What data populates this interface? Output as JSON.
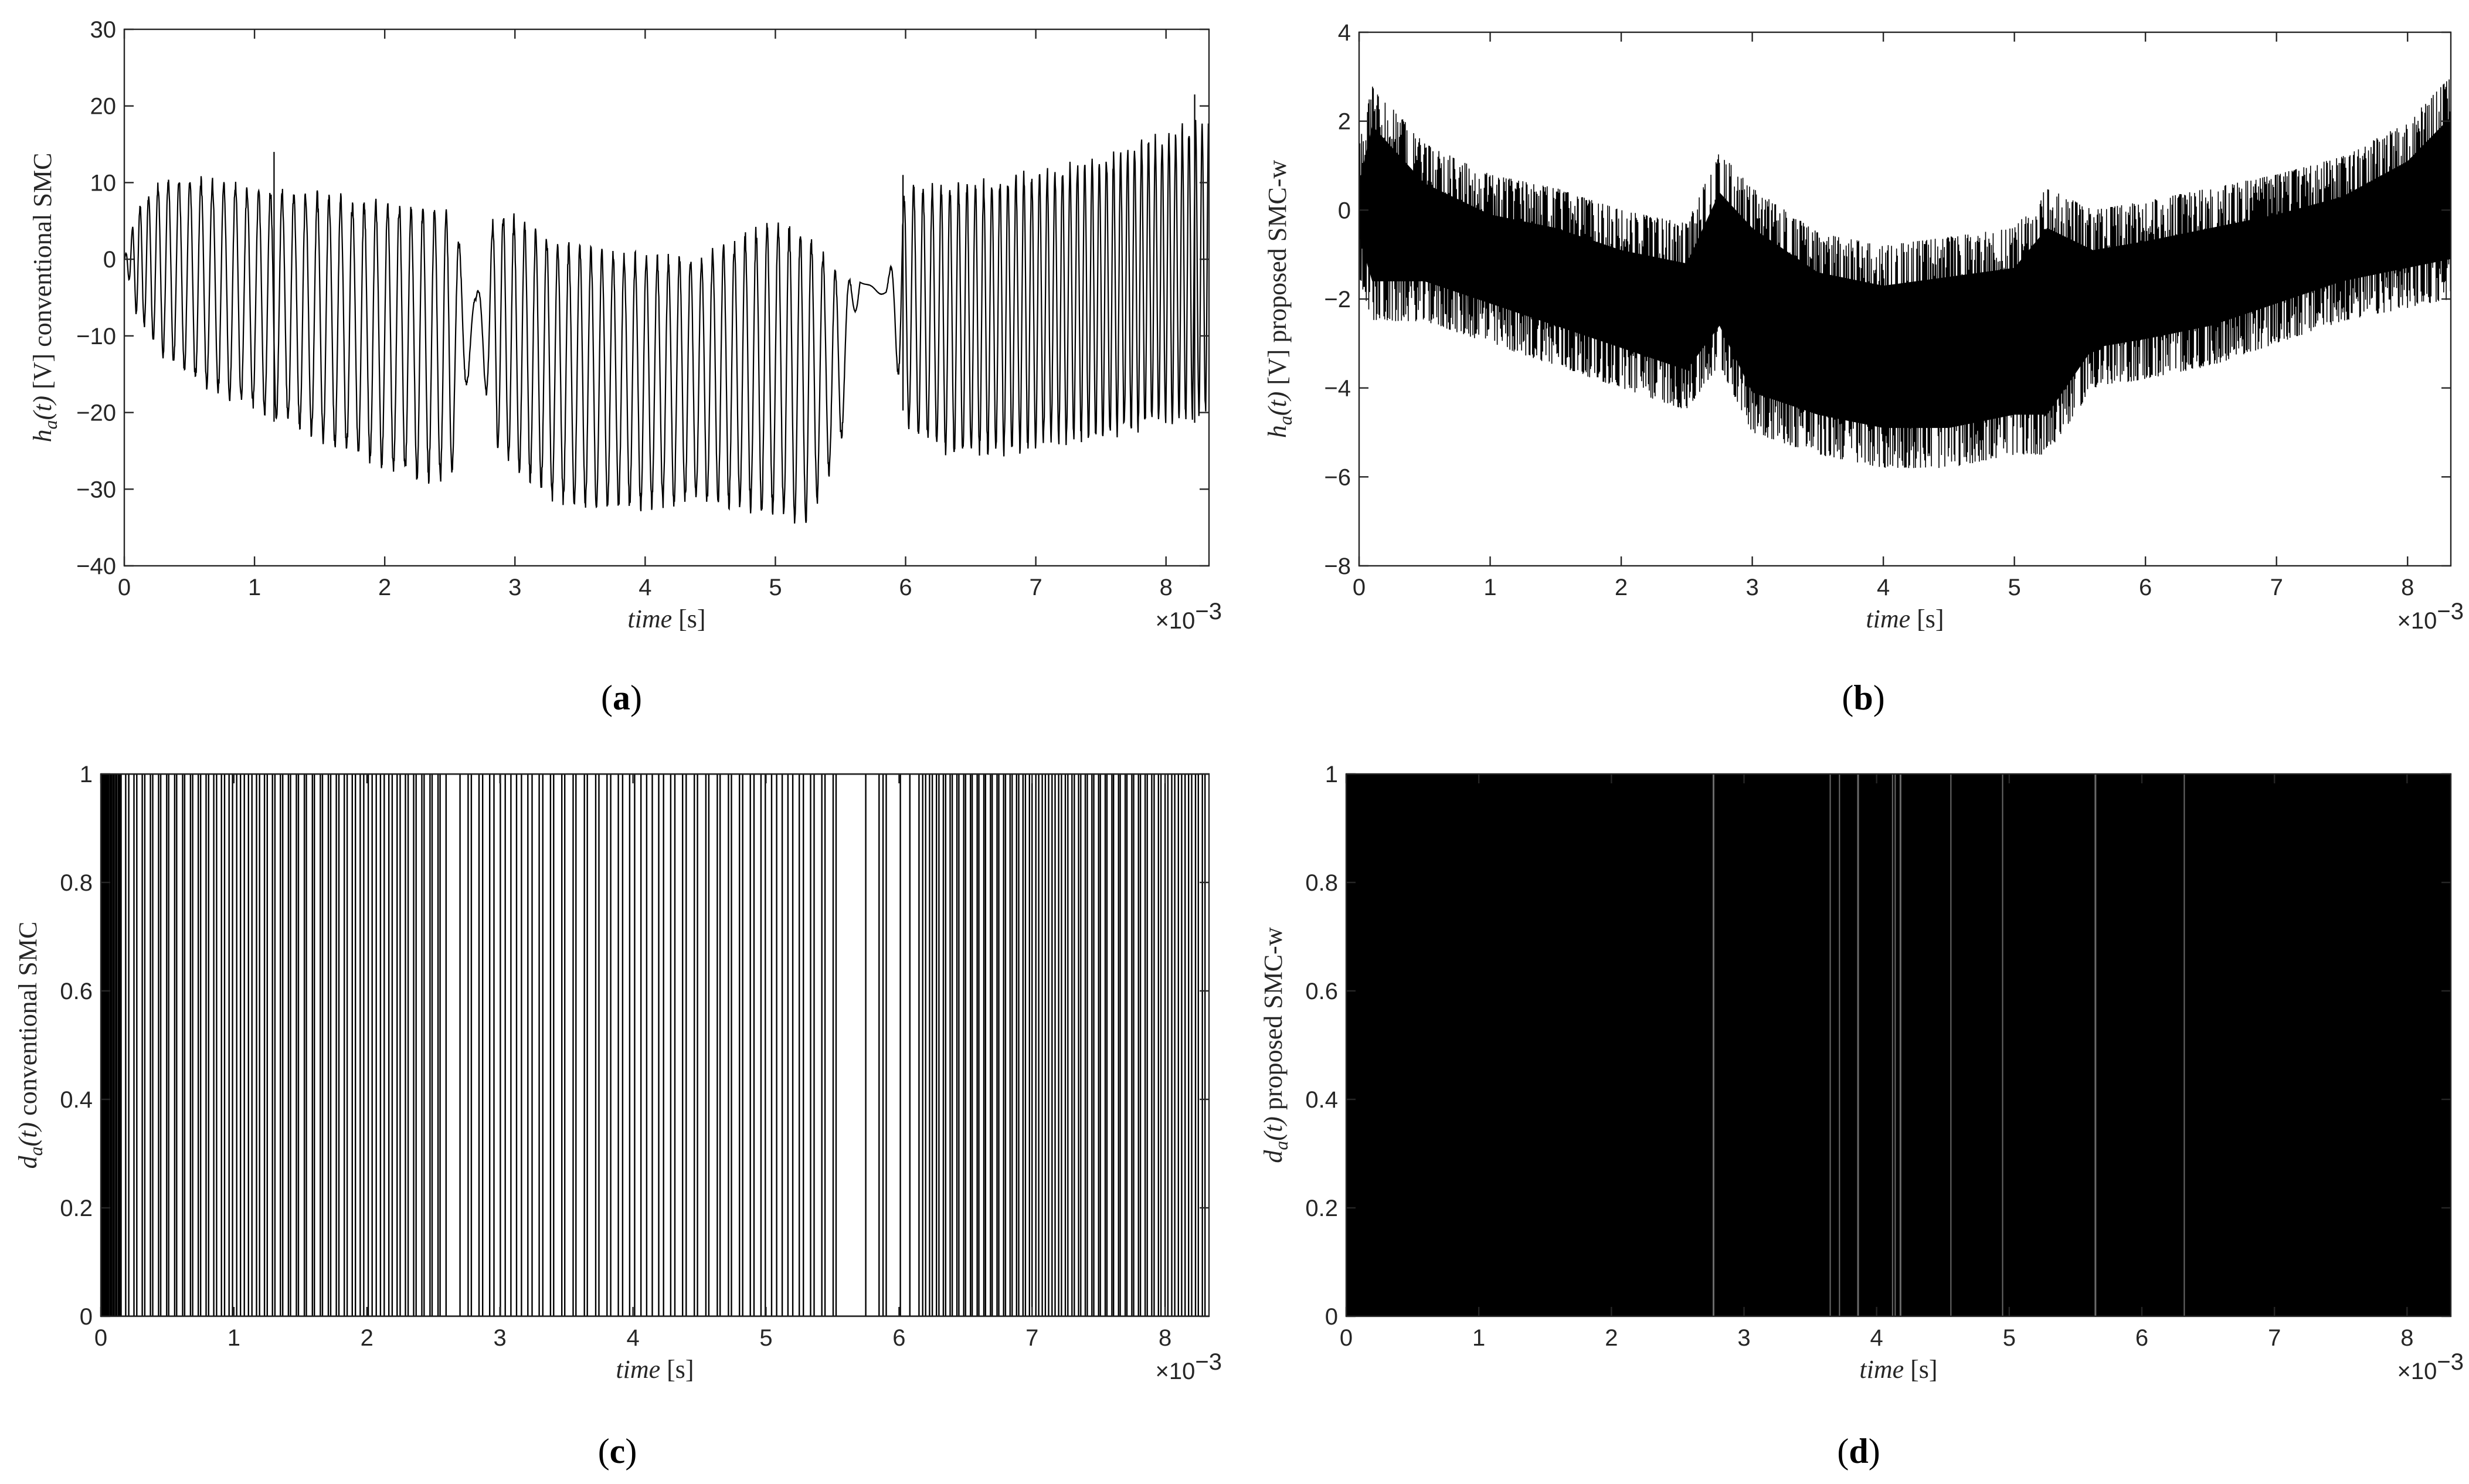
{
  "chart_data": [
    {
      "id": "a",
      "type": "line",
      "caption": "(a)",
      "ylabel": "h_a(t) [V] conventional SMC",
      "ylabel_math": "h",
      "ylabel_sub": "a",
      "ylabel_arg": "(t) ",
      "ylabel_unit": "[V]",
      "ylabel_text": " conventional SMC",
      "xlabel": "time [s]",
      "xlabel_word": "time",
      "xlabel_unit": "[s]",
      "x_exponent": "×10",
      "x_exponent_power": "−3",
      "xlim": [
        0,
        8.33
      ],
      "ylim": [
        -40,
        30
      ],
      "xticks": [
        0,
        1,
        2,
        3,
        4,
        5,
        6,
        7,
        8
      ],
      "yticks": [
        -40,
        -30,
        -20,
        -10,
        0,
        10,
        20,
        30
      ],
      "envelope": {
        "x": [
          0,
          0.1,
          0.3,
          0.6,
          1.0,
          1.5,
          2.0,
          2.5,
          2.7,
          2.85,
          3.0,
          3.3,
          3.6,
          4.0,
          4.4,
          4.7,
          5.0,
          5.25,
          5.5,
          5.65,
          5.85,
          6.0,
          6.3,
          6.7,
          7.0,
          7.5,
          8.0,
          8.33
        ],
        "upper": [
          0,
          7,
          11,
          11,
          10,
          9,
          8,
          7,
          -5,
          7,
          6,
          3,
          2,
          1,
          1,
          3,
          6,
          4,
          -2,
          -3,
          -4,
          10,
          10,
          11,
          12,
          14,
          17,
          19
        ],
        "lower": [
          0,
          -8,
          -13,
          -17,
          -20,
          -24,
          -28,
          -30,
          -10,
          -25,
          -28,
          -32,
          -33,
          -33,
          -32,
          -33,
          -34,
          -35,
          -25,
          -3,
          -5,
          -22,
          -26,
          -26,
          -25,
          -24,
          -22,
          -21
        ],
        "period": [
          0.048,
          0.06,
          0.08,
          0.087,
          0.09,
          0.09,
          0.09,
          0.09,
          0.16,
          0.08,
          0.083,
          0.085,
          0.085,
          0.085,
          0.085,
          0.083,
          0.085,
          0.085,
          0.1,
          0.16,
          0.16,
          0.075,
          0.067,
          0.062,
          0.06,
          0.055,
          0.052,
          0.05
        ]
      },
      "annotations": [
        {
          "x": 5.98,
          "y": 11,
          "label": "spike"
        },
        {
          "x": 1.15,
          "y": 14,
          "label": "spike"
        },
        {
          "x": 8.22,
          "y": 21.5,
          "label": "spike"
        }
      ]
    },
    {
      "id": "b",
      "type": "line",
      "caption": "(b)",
      "ylabel": "h_a(t) [V] proposed SMC-w",
      "ylabel_math": "h",
      "ylabel_sub": "a",
      "ylabel_arg": "(t) ",
      "ylabel_unit": "[V]",
      "ylabel_text": " proposed SMC-w",
      "xlabel": "time [s]",
      "xlabel_word": "time",
      "xlabel_unit": "[s]",
      "x_exponent": "×10",
      "x_exponent_power": "−3",
      "xlim": [
        0,
        8.33
      ],
      "ylim": [
        -8,
        4
      ],
      "xticks": [
        0,
        1,
        2,
        3,
        4,
        5,
        6,
        7,
        8
      ],
      "yticks": [
        -8,
        -6,
        -4,
        -2,
        0,
        2,
        4
      ],
      "envelope": {
        "x": [
          0,
          0.1,
          0.5,
          1.0,
          1.5,
          2.0,
          2.5,
          2.75,
          3.0,
          3.5,
          4.0,
          4.5,
          5.0,
          5.25,
          5.6,
          6.0,
          6.5,
          7.0,
          7.5,
          8.0,
          8.33
        ],
        "upper": [
          1.5,
          2.8,
          1.5,
          0.8,
          0.5,
          0.0,
          -0.3,
          1.3,
          0.5,
          -0.5,
          -0.8,
          -0.6,
          -0.4,
          0.5,
          0.0,
          0.2,
          0.5,
          0.8,
          1.2,
          2.0,
          3.0
        ],
        "lower": [
          -1.5,
          -2.5,
          -2.5,
          -3.0,
          -3.5,
          -4.0,
          -4.5,
          -3.5,
          -5.0,
          -5.5,
          -5.8,
          -5.8,
          -5.5,
          -5.5,
          -4.0,
          -3.8,
          -3.5,
          -3.0,
          -2.5,
          -2.2,
          -2.0
        ]
      }
    },
    {
      "id": "c",
      "type": "line",
      "caption": "(c)",
      "ylabel": "d_a(t) conventional SMC",
      "ylabel_math": "d",
      "ylabel_sub": "a",
      "ylabel_arg": "(t)",
      "ylabel_unit": "",
      "ylabel_text": " conventional SMC",
      "xlabel": "time [s]",
      "xlabel_word": "time",
      "xlabel_unit": "[s]",
      "x_exponent": "×10",
      "x_exponent_power": "−3",
      "xlim": [
        0,
        8.33
      ],
      "ylim": [
        0,
        1
      ],
      "xticks": [
        0,
        1,
        2,
        3,
        4,
        5,
        6,
        7,
        8
      ],
      "yticks": [
        0,
        0.2,
        0.4,
        0.6,
        0.8,
        1
      ],
      "switching": {
        "segments": [
          {
            "from": 0.0,
            "to": 0.15,
            "period": 0.02
          },
          {
            "from": 0.15,
            "to": 2.6,
            "period": 0.06
          },
          {
            "from": 2.7,
            "to": 5.52,
            "period": 0.085
          },
          {
            "from": 5.85,
            "to": 6.1,
            "period": 0.16
          },
          {
            "from": 6.15,
            "to": 8.33,
            "period": 0.05
          }
        ],
        "isolated_edges": [
          5.75,
          5.88
        ]
      }
    },
    {
      "id": "d",
      "type": "line",
      "caption": "(d)",
      "ylabel": "d_a(t) proposed SMC-w",
      "ylabel_math": "d",
      "ylabel_sub": "a",
      "ylabel_arg": "(t)",
      "ylabel_unit": "",
      "ylabel_text": " proposed SMC-w",
      "xlabel": "time [s]",
      "xlabel_word": "time",
      "xlabel_unit": "[s]",
      "x_exponent": "×10",
      "x_exponent_power": "−3",
      "xlim": [
        0,
        8.33
      ],
      "ylim": [
        0,
        1
      ],
      "xticks": [
        0,
        1,
        2,
        3,
        4,
        5,
        6,
        7,
        8
      ],
      "yticks": [
        0,
        0.2,
        0.4,
        0.6,
        0.8,
        1
      ],
      "gaps": [
        2.77,
        3.65,
        3.72,
        3.86,
        4.12,
        4.14,
        4.18,
        4.56,
        4.95,
        5.65,
        6.32
      ]
    }
  ]
}
